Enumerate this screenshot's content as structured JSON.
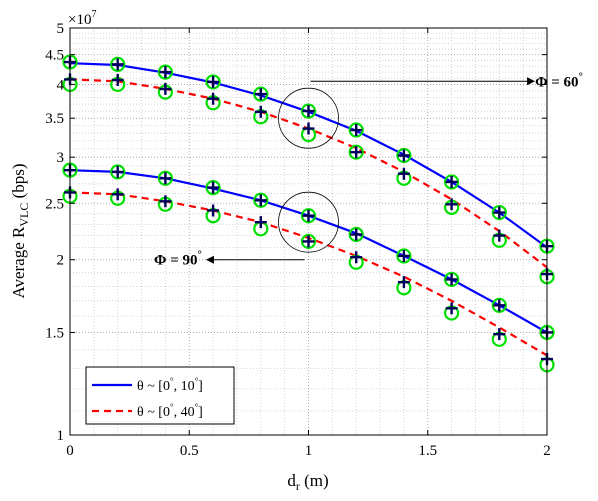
{
  "chart_data": {
    "type": "line",
    "xlabel_main": "d",
    "xlabel_sub": "r",
    "xlabel_unit": " (m)",
    "ylabel_main": "Average R",
    "ylabel_sub": "VLC",
    "ylabel_unit": " (bps)",
    "y_exponent_base": "×10",
    "y_exponent_power": "7",
    "y_scale": "log",
    "xlim": [
      0,
      2
    ],
    "ylim": [
      1,
      5
    ],
    "x_ticks": [
      "0",
      "0.5",
      "1",
      "1.5",
      "2"
    ],
    "y_ticks": [
      {
        "value": 1,
        "label": "1"
      },
      {
        "value": 1.5,
        "label": "1.5"
      },
      {
        "value": 2,
        "label": "2"
      },
      {
        "value": 2.5,
        "label": "2.5"
      },
      {
        "value": 3,
        "label": "3"
      },
      {
        "value": 3.5,
        "label": "3.5"
      },
      {
        "value": 4,
        "label": "4"
      },
      {
        "value": 4.5,
        "label": "4.5"
      },
      {
        "value": 5,
        "label": "5"
      }
    ],
    "grid": true,
    "x": [
      0,
      0.2,
      0.4,
      0.6,
      0.8,
      1.0,
      1.2,
      1.4,
      1.6,
      1.8,
      2.0
    ],
    "series": [
      {
        "group": "Φ = 60°",
        "style": "solid",
        "color": "#0000ff",
        "line": [
          4.35,
          4.32,
          4.19,
          4.03,
          3.83,
          3.59,
          3.33,
          3.03,
          2.72,
          2.41,
          2.1
        ],
        "cross": [
          4.37,
          4.33,
          4.2,
          4.04,
          3.85,
          3.6,
          3.34,
          3.02,
          2.72,
          2.41,
          2.11
        ],
        "circle": [
          4.37,
          4.33,
          4.2,
          4.04,
          3.85,
          3.6,
          3.34,
          3.02,
          2.72,
          2.41,
          2.11
        ]
      },
      {
        "group": "Φ = 60°",
        "style": "dashed",
        "color": "#ff0000",
        "line": [
          4.08,
          4.05,
          3.93,
          3.78,
          3.59,
          3.36,
          3.11,
          2.83,
          2.54,
          2.24,
          1.94
        ],
        "cross": [
          4.08,
          4.07,
          3.93,
          3.78,
          3.59,
          3.36,
          3.06,
          2.81,
          2.49,
          2.2,
          1.89
        ],
        "circle": [
          4.0,
          4.0,
          3.88,
          3.72,
          3.52,
          3.28,
          3.06,
          2.76,
          2.46,
          2.16,
          1.87
        ]
      },
      {
        "group": "Φ = 90°",
        "style": "solid",
        "color": "#0000ff",
        "line": [
          2.85,
          2.83,
          2.76,
          2.65,
          2.53,
          2.38,
          2.22,
          2.03,
          1.85,
          1.67,
          1.5
        ],
        "cross": [
          2.85,
          2.83,
          2.76,
          2.66,
          2.53,
          2.38,
          2.21,
          2.03,
          1.85,
          1.67,
          1.5
        ],
        "circle": [
          2.85,
          2.83,
          2.76,
          2.66,
          2.53,
          2.38,
          2.21,
          2.03,
          1.85,
          1.67,
          1.5
        ]
      },
      {
        "group": "Φ = 90°",
        "style": "dashed",
        "color": "#ff0000",
        "line": [
          2.61,
          2.59,
          2.52,
          2.43,
          2.32,
          2.18,
          2.03,
          1.87,
          1.7,
          1.53,
          1.37
        ],
        "cross": [
          2.61,
          2.59,
          2.52,
          2.43,
          2.32,
          2.15,
          2.02,
          1.83,
          1.65,
          1.49,
          1.35
        ],
        "circle": [
          2.57,
          2.55,
          2.49,
          2.38,
          2.26,
          2.15,
          1.98,
          1.79,
          1.62,
          1.46,
          1.32
        ]
      }
    ],
    "annotations": [
      {
        "name": "phi60",
        "main": "Φ = 60",
        "deg": "°",
        "circle_at": [
          1.0,
          3.5
        ],
        "arrow_to": [
          1.95,
          4.05
        ],
        "arrow_dir": "right"
      },
      {
        "name": "phi90",
        "main": "Φ = 90",
        "deg": "°",
        "circle_at": [
          1.0,
          2.32
        ],
        "arrow_to": [
          0.57,
          2.0
        ],
        "arrow_dir": "left"
      }
    ],
    "legend": {
      "position": "bottom-left",
      "entries": [
        {
          "prefix": "θ ~ [0",
          "mid": ", 10",
          "suffix": "]",
          "deg": "°",
          "style": "solid",
          "color": "#0000ff"
        },
        {
          "prefix": "θ ~ [0",
          "mid": ", 40",
          "suffix": "]",
          "deg": "°",
          "style": "dashed",
          "color": "#ff0000"
        }
      ]
    },
    "markers": {
      "cross_color": "#00005a",
      "circle_color": "#00e000"
    }
  }
}
